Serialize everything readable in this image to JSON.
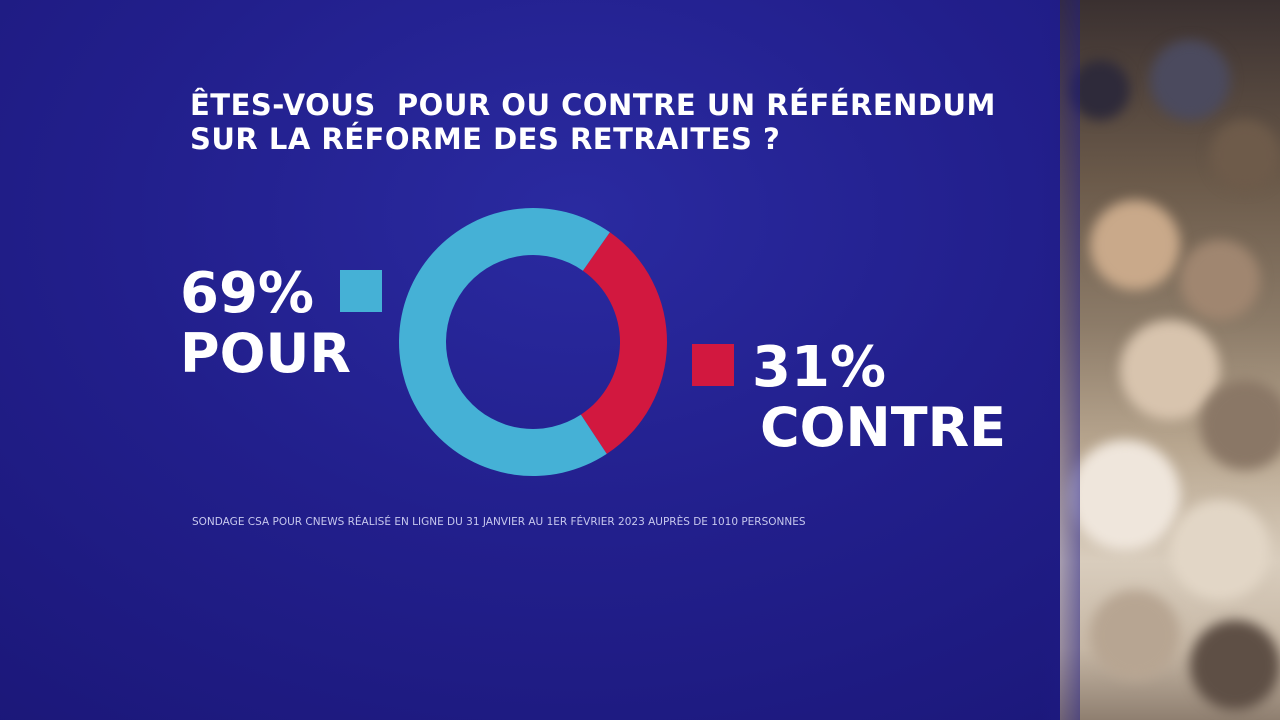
{
  "title_lines": [
    "ÊTES-VOUS  POUR OU CONTRE UN RÉFÉRENDUM",
    "SUR LA RÉFORME DES RETRAITES ?"
  ],
  "colors": {
    "background": "#1f1b86",
    "pour": "#45b1d6",
    "contre": "#d2183f",
    "text": "#ffffff"
  },
  "legend": {
    "pour": {
      "value_label": "69%",
      "label": "POUR"
    },
    "contre": {
      "value_label": "31%",
      "label": "CONTRE"
    }
  },
  "source": "SONDAGE CSA POUR CNEWS RÉALISÉ EN LIGNE DU 31 JANVIER AU 1ER FÉVRIER 2023 AUPRÈS DE 1010 PERSONNES",
  "chart_data": {
    "type": "pie",
    "title": "ÊTES-VOUS  POUR OU CONTRE UN RÉFÉRENDUM SUR LA RÉFORME DES RETRAITES ?",
    "categories": [
      "POUR",
      "CONTRE"
    ],
    "values": [
      69,
      31
    ],
    "unit": "%",
    "donut": true,
    "legend": "beside-slices"
  }
}
